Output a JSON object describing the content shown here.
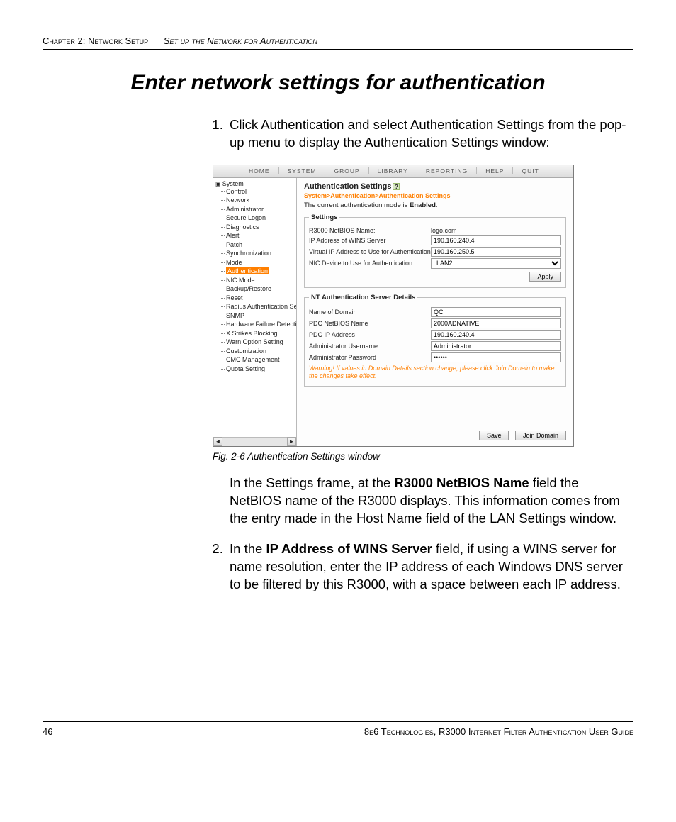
{
  "header": {
    "chapter": "Chapter 2: Network Setup",
    "section": "Set up the Network for Authentication"
  },
  "title": "Enter network settings for authentication",
  "steps": {
    "s1": "Click Authentication and select Authentication Settings from the pop-up menu to display the Authentication Settings window:",
    "s1b_pre": "In the Settings frame, at the ",
    "s1b_bold": "R3000 NetBIOS Name",
    "s1b_post": " field the NetBIOS name of the R3000 displays. This information comes from the entry made in the Host Name field of the LAN Settings window.",
    "s2_pre": "In the ",
    "s2_bold": "IP Address of WINS Server",
    "s2_post": " field, if using a WINS server for name resolution, enter the IP address of each Windows DNS server to be filtered by this R3000, with a space between each IP address."
  },
  "caption": "Fig. 2-6  Authentication Settings window",
  "footer": {
    "page": "46",
    "right": "8e6 Technologies, R3000 Internet Filter Authentication User Guide"
  },
  "shot": {
    "menu": [
      "HOME",
      "SYSTEM",
      "GROUP",
      "LIBRARY",
      "REPORTING",
      "HELP",
      "QUIT"
    ],
    "tree_root": "System",
    "tree": [
      "Control",
      "Network",
      "Administrator",
      "Secure Logon",
      "Diagnostics",
      "Alert",
      "Patch",
      "Synchronization",
      "Mode",
      "Authentication",
      "NIC Mode",
      "Backup/Restore",
      "Reset",
      "Radius Authentication Setting",
      "SNMP",
      "Hardware Failure Detection",
      "X Strikes Blocking",
      "Warn Option Setting",
      "Customization",
      "CMC Management",
      "Quota Setting"
    ],
    "tree_selected_index": 9,
    "panel_title": "Authentication Settings",
    "breadcrumb": "System>Authentication>Authentication Settings",
    "mode_pre": "The current authentication mode is ",
    "mode_bold": "Enabled",
    "mode_post": ".",
    "settings_legend": "Settings",
    "settings": {
      "netbios_label": "R3000 NetBIOS Name:",
      "netbios_value": "logo.com",
      "wins_label": "IP Address of WINS Server",
      "wins_value": "190.160.240.4",
      "vip_label": "Virtual IP Address to Use for Authentication",
      "vip_value": "190.160.250.5",
      "nic_label": "NIC Device to Use for Authentication",
      "nic_value": "LAN2",
      "apply": "Apply"
    },
    "nt_legend": "NT Authentication Server Details",
    "nt": {
      "domain_label": "Name of Domain",
      "domain_value": "QC",
      "pdcnb_label": "PDC NetBIOS Name",
      "pdcnb_value": "2000ADNATIVE",
      "pdcip_label": "PDC IP Address",
      "pdcip_value": "190.160.240.4",
      "admin_label": "Administrator Username",
      "admin_value": "Administrator",
      "pass_label": "Administrator Password",
      "pass_value": "••••••",
      "warn": "Warning! If values in Domain Details section change, please click Join Domain to make the changes take effect."
    },
    "save": "Save",
    "join": "Join Domain"
  }
}
